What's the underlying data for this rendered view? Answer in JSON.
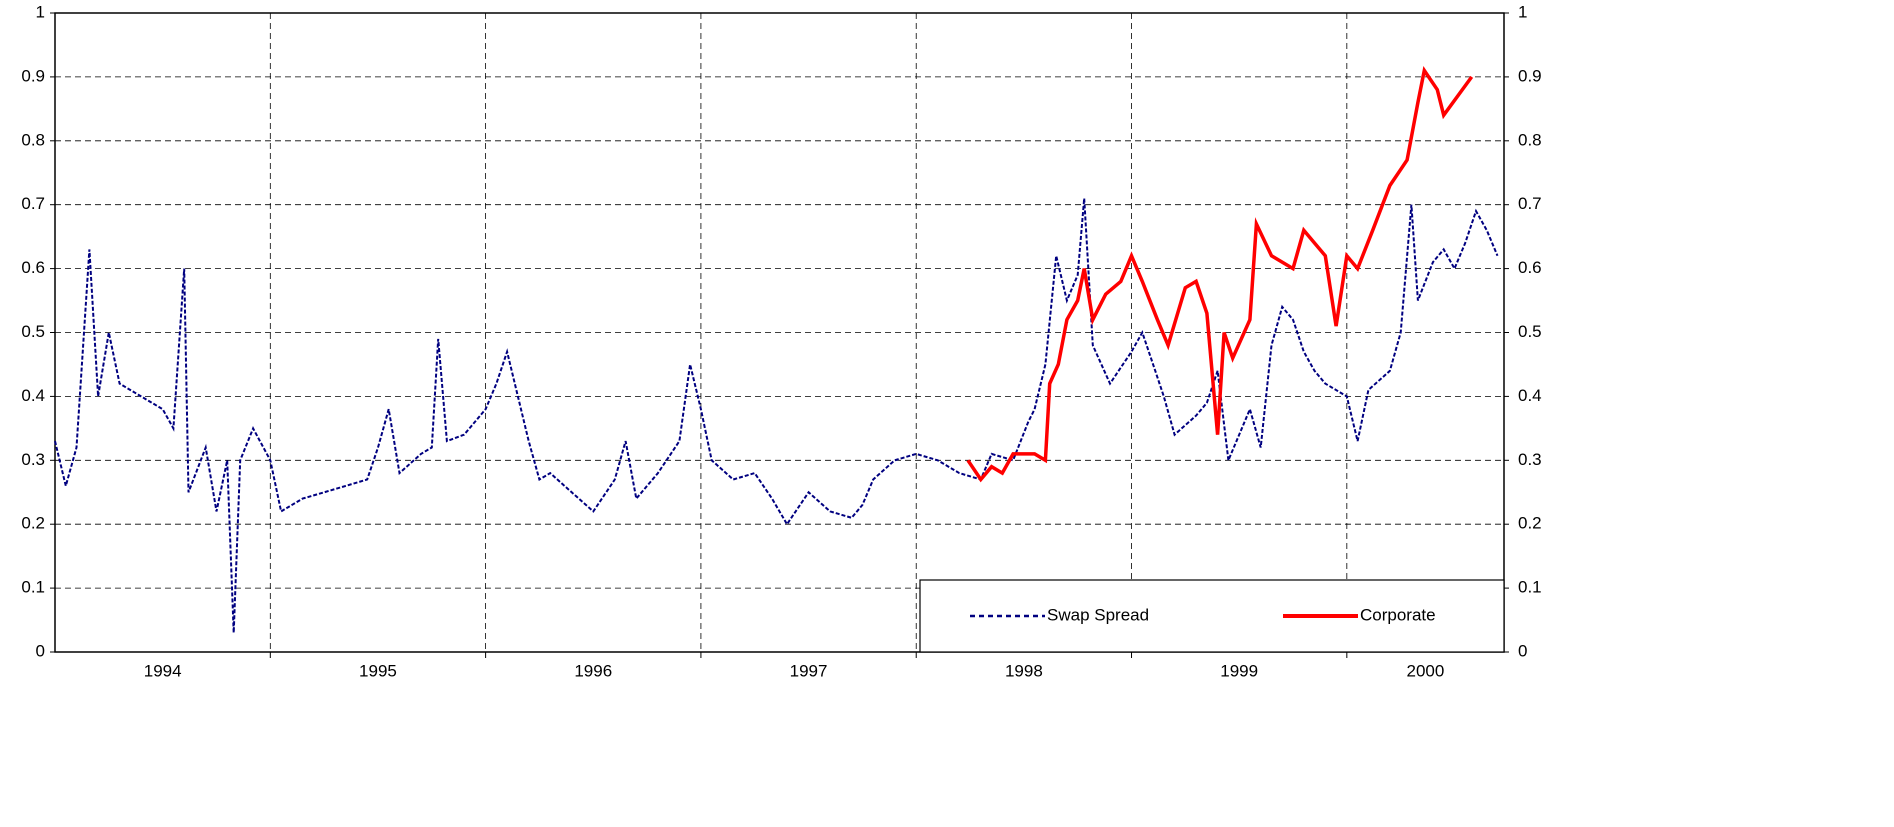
{
  "chart_data": {
    "type": "line",
    "xlim": [
      1994,
      2000.73
    ],
    "xticks": [
      {
        "value": 1994.5,
        "label": "1994"
      },
      {
        "value": 1995.5,
        "label": "1995"
      },
      {
        "value": 1996.5,
        "label": "1996"
      },
      {
        "value": 1997.5,
        "label": "1997"
      },
      {
        "value": 1998.5,
        "label": "1998"
      },
      {
        "value": 1999.5,
        "label": "1999"
      },
      {
        "value": 2000.365,
        "label": "2000"
      }
    ],
    "xgrid": [
      1995,
      1996,
      1997,
      1998,
      1999,
      2000
    ],
    "ylim": [
      0,
      1
    ],
    "yticks": [
      0,
      0.1,
      0.2,
      0.3,
      0.4,
      0.5,
      0.6,
      0.7,
      0.8,
      0.9,
      1
    ],
    "y2lim": [
      0,
      1
    ],
    "y2ticks": [
      0,
      0.1,
      0.2,
      0.3,
      0.4,
      0.5,
      0.6,
      0.7,
      0.8,
      0.9,
      1
    ],
    "grid": true,
    "legend": "lower right",
    "series": [
      {
        "name": "Swap Spread",
        "color": "#000080",
        "dash": true,
        "x": [
          1994.0,
          1994.05,
          1994.1,
          1994.16,
          1994.2,
          1994.25,
          1994.3,
          1994.4,
          1994.5,
          1994.55,
          1994.6,
          1994.62,
          1994.7,
          1994.75,
          1994.8,
          1994.83,
          1994.86,
          1994.92,
          1995.0,
          1995.05,
          1995.15,
          1995.25,
          1995.35,
          1995.45,
          1995.5,
          1995.55,
          1995.6,
          1995.7,
          1995.75,
          1995.78,
          1995.82,
          1995.9,
          1996.0,
          1996.05,
          1996.1,
          1996.15,
          1996.2,
          1996.25,
          1996.3,
          1996.4,
          1996.5,
          1996.6,
          1996.65,
          1996.7,
          1996.8,
          1996.9,
          1996.95,
          1997.0,
          1997.05,
          1997.15,
          1997.25,
          1997.33,
          1997.4,
          1997.5,
          1997.6,
          1997.7,
          1997.75,
          1997.8,
          1997.9,
          1998.0,
          1998.1,
          1998.2,
          1998.3,
          1998.35,
          1998.45,
          1998.52,
          1998.55,
          1998.6,
          1998.65,
          1998.7,
          1998.75,
          1998.78,
          1998.82,
          1998.9,
          1999.0,
          1999.05,
          1999.1,
          1999.15,
          1999.2,
          1999.3,
          1999.35,
          1999.4,
          1999.45,
          1999.55,
          1999.6,
          1999.65,
          1999.7,
          1999.75,
          1999.8,
          1999.85,
          1999.9,
          2000.0,
          2000.05,
          2000.1,
          2000.2,
          2000.25,
          2000.3,
          2000.33,
          2000.4,
          2000.45,
          2000.5,
          2000.55,
          2000.6,
          2000.65,
          2000.7
        ],
        "values": [
          0.33,
          0.26,
          0.32,
          0.63,
          0.4,
          0.5,
          0.42,
          0.4,
          0.38,
          0.35,
          0.6,
          0.25,
          0.32,
          0.22,
          0.3,
          0.03,
          0.3,
          0.35,
          0.3,
          0.22,
          0.24,
          0.25,
          0.26,
          0.27,
          0.32,
          0.38,
          0.28,
          0.31,
          0.32,
          0.49,
          0.33,
          0.34,
          0.38,
          0.42,
          0.47,
          0.4,
          0.33,
          0.27,
          0.28,
          0.25,
          0.22,
          0.27,
          0.33,
          0.24,
          0.28,
          0.33,
          0.45,
          0.38,
          0.3,
          0.27,
          0.28,
          0.24,
          0.2,
          0.25,
          0.22,
          0.21,
          0.23,
          0.27,
          0.3,
          0.31,
          0.3,
          0.28,
          0.27,
          0.31,
          0.3,
          0.36,
          0.38,
          0.45,
          0.62,
          0.55,
          0.59,
          0.71,
          0.48,
          0.42,
          0.47,
          0.5,
          0.45,
          0.4,
          0.34,
          0.37,
          0.39,
          0.44,
          0.3,
          0.38,
          0.32,
          0.48,
          0.54,
          0.52,
          0.47,
          0.44,
          0.42,
          0.4,
          0.33,
          0.41,
          0.44,
          0.5,
          0.7,
          0.55,
          0.61,
          0.63,
          0.6,
          0.64,
          0.69,
          0.66,
          0.62
        ]
      },
      {
        "name": "Corporate",
        "color": "#ff0000",
        "dash": false,
        "x": [
          1998.24,
          1998.3,
          1998.35,
          1998.4,
          1998.45,
          1998.55,
          1998.6,
          1998.62,
          1998.66,
          1998.7,
          1998.75,
          1998.78,
          1998.82,
          1998.88,
          1998.95,
          1999.0,
          1999.05,
          1999.12,
          1999.17,
          1999.25,
          1999.3,
          1999.35,
          1999.4,
          1999.43,
          1999.47,
          1999.55,
          1999.58,
          1999.65,
          1999.75,
          1999.8,
          1999.85,
          1999.9,
          1999.95,
          2000.0,
          2000.05,
          2000.12,
          2000.2,
          2000.28,
          2000.33,
          2000.36,
          2000.42,
          2000.45,
          2000.58
        ],
        "values": [
          0.3,
          0.27,
          0.29,
          0.28,
          0.31,
          0.31,
          0.3,
          0.42,
          0.45,
          0.52,
          0.55,
          0.6,
          0.52,
          0.56,
          0.58,
          0.62,
          0.58,
          0.52,
          0.48,
          0.57,
          0.58,
          0.53,
          0.34,
          0.5,
          0.46,
          0.52,
          0.67,
          0.62,
          0.6,
          0.66,
          0.64,
          0.62,
          0.51,
          0.62,
          0.6,
          0.66,
          0.73,
          0.77,
          0.86,
          0.91,
          0.88,
          0.84,
          0.9
        ]
      }
    ]
  }
}
